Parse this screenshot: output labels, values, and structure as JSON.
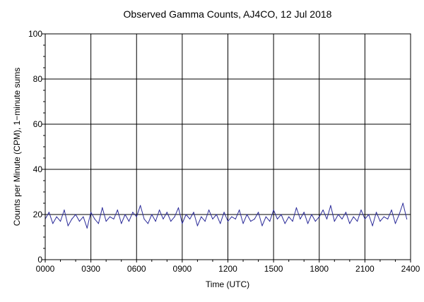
{
  "chart_data": {
    "type": "line",
    "title": "Observed Gamma Counts, AJ4CO, 12 Jul 2018",
    "xlabel": "Time (UTC)",
    "ylabel": "Counts per Minute (CPM), 1−minute sums",
    "xlim": [
      0,
      24
    ],
    "ylim": [
      0,
      100
    ],
    "x_ticks": [
      {
        "value": 0,
        "label": "0000"
      },
      {
        "value": 3,
        "label": "0300"
      },
      {
        "value": 6,
        "label": "0600"
      },
      {
        "value": 9,
        "label": "0900"
      },
      {
        "value": 12,
        "label": "1200"
      },
      {
        "value": 15,
        "label": "1500"
      },
      {
        "value": 18,
        "label": "1800"
      },
      {
        "value": 21,
        "label": "2100"
      },
      {
        "value": 24,
        "label": "2400"
      }
    ],
    "y_ticks": [
      {
        "value": 0,
        "label": "0"
      },
      {
        "value": 20,
        "label": "20"
      },
      {
        "value": 40,
        "label": "40"
      },
      {
        "value": 60,
        "label": "60"
      },
      {
        "value": 80,
        "label": "80"
      },
      {
        "value": 100,
        "label": "100"
      }
    ],
    "grid": true,
    "series": [
      {
        "color": "#2b2b99",
        "sampling_interval_hours": 0.25,
        "values": [
          18,
          21,
          16,
          19,
          17,
          22,
          15,
          18,
          20,
          17,
          19,
          14,
          21,
          18,
          16,
          23,
          17,
          19,
          18,
          22,
          16,
          20,
          17,
          21,
          19,
          24,
          18,
          16,
          20,
          17,
          22,
          18,
          21,
          17,
          19,
          23,
          16,
          20,
          18,
          21,
          15,
          19,
          17,
          22,
          18,
          20,
          16,
          21,
          17,
          19,
          18,
          22,
          16,
          20,
          17,
          18,
          21,
          15,
          19,
          17,
          22,
          18,
          20,
          16,
          19,
          17,
          23,
          18,
          21,
          16,
          20,
          17,
          19,
          22,
          18,
          24,
          17,
          20,
          18,
          21,
          16,
          19,
          17,
          22,
          18,
          20,
          15,
          21,
          17,
          19,
          18,
          22,
          16,
          20,
          25,
          18
        ]
      }
    ]
  }
}
